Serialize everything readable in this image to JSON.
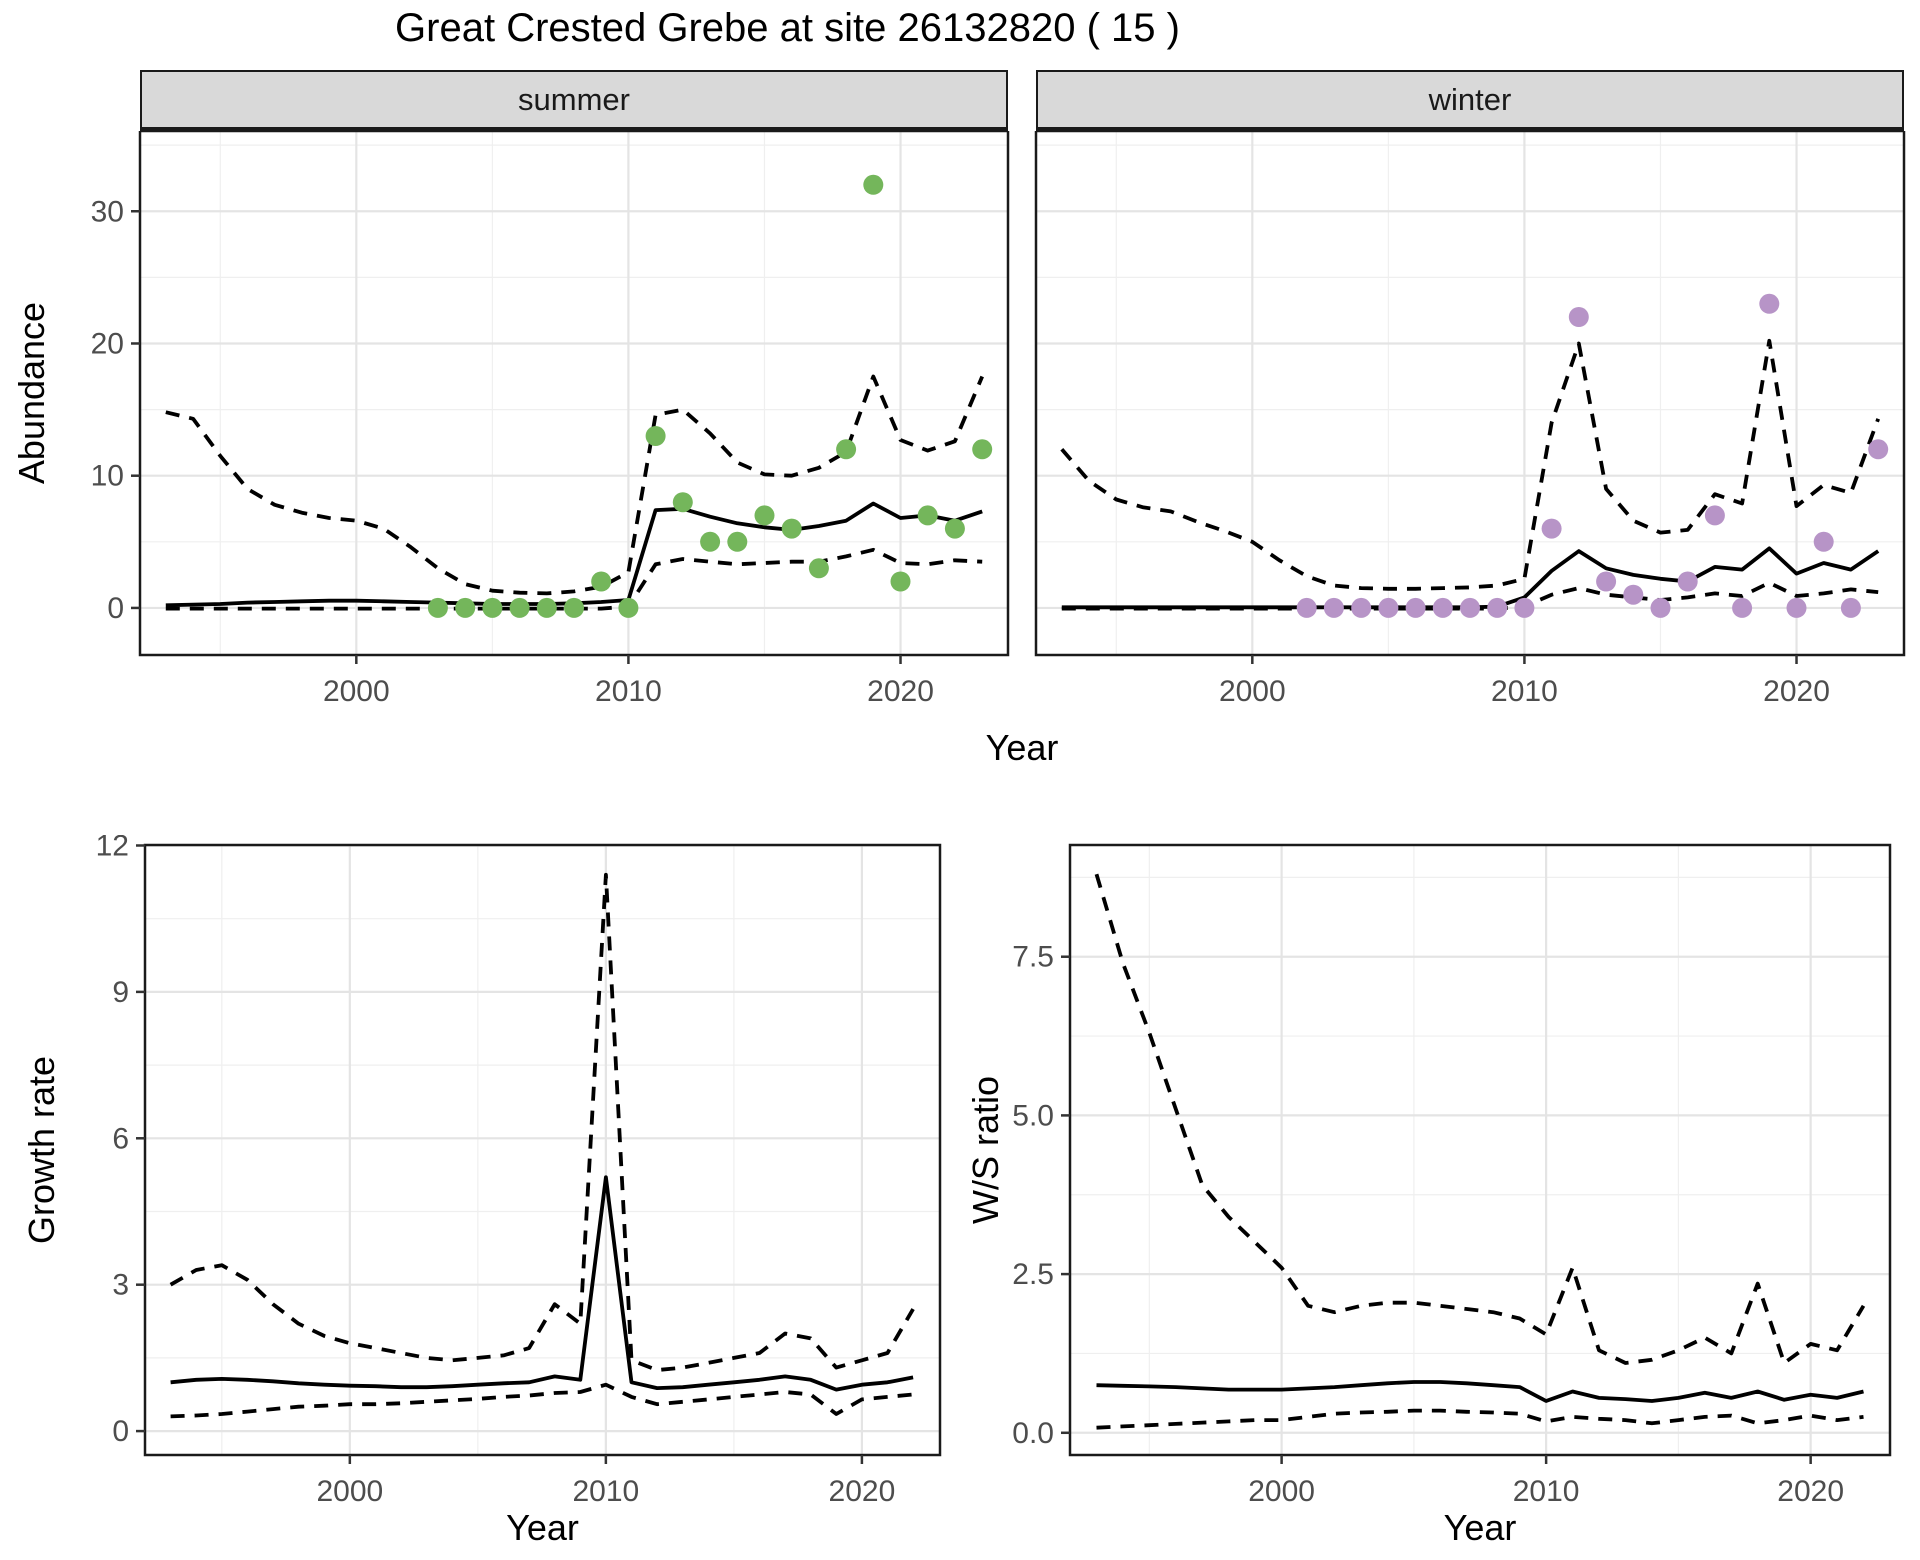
{
  "title": "Great Crested Grebe at site 26132820 ( 15 )",
  "facets": {
    "summer": "summer",
    "winter": "winter"
  },
  "axis_titles": {
    "abundance": "Abundance",
    "year": "Year",
    "growth_rate": "Growth rate",
    "ws_ratio": "W/S ratio"
  },
  "colors": {
    "summer_points": "#74b65b",
    "winter_points": "#b794c7",
    "line": "#000000",
    "grid_major": "#e4e4e4",
    "grid_minor": "#efefef",
    "strip_bg": "#d9d9d9",
    "axis_text": "#4d4d4d",
    "tick_mark": "#333333",
    "panel_border": "#1a1a1a"
  },
  "chart_data": [
    {
      "id": "summer",
      "type": "line",
      "facet": "summer",
      "xlabel": "Year",
      "ylabel": "Abundance",
      "xlim": [
        1992.05,
        2023.95
      ],
      "ylim": [
        -3.56,
        36.07
      ],
      "xticks": [
        2000,
        2010,
        2020
      ],
      "xticklabels": [
        "2000",
        "2010",
        "2020"
      ],
      "xticks_minor": [
        1995,
        2005,
        2015
      ],
      "yticks": [
        0,
        10,
        20,
        30
      ],
      "yticklabels": [
        "0",
        "10",
        "20",
        "30"
      ],
      "yticks_minor": [
        5,
        15,
        25,
        35
      ],
      "series": [
        {
          "name": "fitted",
          "style": "solid",
          "x_start": 1993,
          "values": [
            0.2,
            0.25,
            0.3,
            0.4,
            0.45,
            0.5,
            0.55,
            0.55,
            0.5,
            0.45,
            0.4,
            0.35,
            0.3,
            0.3,
            0.3,
            0.35,
            0.45,
            0.6,
            7.4,
            7.5,
            6.9,
            6.4,
            6.1,
            5.9,
            6.2,
            6.6,
            7.9,
            6.8,
            7.0,
            6.6,
            7.3
          ]
        },
        {
          "name": "upper-ci",
          "style": "dashed",
          "x_start": 1993,
          "values": [
            14.8,
            14.3,
            11.5,
            9.0,
            7.8,
            7.2,
            6.8,
            6.6,
            6.0,
            4.6,
            3.0,
            1.8,
            1.3,
            1.15,
            1.1,
            1.25,
            1.6,
            2.7,
            14.6,
            15.0,
            13.2,
            11.0,
            10.1,
            10.0,
            10.6,
            11.8,
            17.5,
            12.7,
            11.9,
            12.6,
            17.5
          ]
        },
        {
          "name": "lower-ci",
          "style": "dashed",
          "x_start": 1993,
          "values": [
            -0.05,
            -0.05,
            -0.05,
            -0.05,
            -0.05,
            -0.05,
            -0.05,
            -0.05,
            -0.05,
            -0.05,
            -0.05,
            -0.05,
            -0.05,
            -0.05,
            -0.05,
            -0.05,
            -0.05,
            0.1,
            3.3,
            3.7,
            3.5,
            3.3,
            3.4,
            3.5,
            3.5,
            3.9,
            4.4,
            3.4,
            3.3,
            3.6,
            3.5
          ]
        },
        {
          "name": "observed",
          "style": "points",
          "color": "#74b65b",
          "x_start": 2003,
          "values": [
            0,
            0,
            0,
            0,
            0,
            0,
            2,
            0,
            13,
            8,
            5,
            5,
            7,
            6,
            3,
            12,
            32,
            2,
            7,
            6,
            12
          ]
        }
      ]
    },
    {
      "id": "winter",
      "type": "line",
      "facet": "winter",
      "xlabel": "Year",
      "ylabel": "Abundance",
      "xlim": [
        1992.05,
        2023.95
      ],
      "ylim": [
        -3.56,
        36.07
      ],
      "xticks": [
        2000,
        2010,
        2020
      ],
      "xticklabels": [
        "2000",
        "2010",
        "2020"
      ],
      "xticks_minor": [
        1995,
        2005,
        2015
      ],
      "yticks": [
        0,
        10,
        20,
        30
      ],
      "yticklabels": [
        "0",
        "10",
        "20",
        "30"
      ],
      "yticks_minor": [
        5,
        15,
        25,
        35
      ],
      "series": [
        {
          "name": "fitted",
          "style": "solid",
          "x_start": 1993,
          "values": [
            0.05,
            0.05,
            0.05,
            0.05,
            0.05,
            0.05,
            0.05,
            0.05,
            0.05,
            0.05,
            0.05,
            0.05,
            0.05,
            0.05,
            0.05,
            0.05,
            0.1,
            0.8,
            2.8,
            4.3,
            3.0,
            2.5,
            2.2,
            2.0,
            3.1,
            2.9,
            4.5,
            2.6,
            3.4,
            2.9,
            4.3
          ]
        },
        {
          "name": "upper-ci",
          "style": "dashed",
          "x_start": 1993,
          "values": [
            12.0,
            9.6,
            8.2,
            7.6,
            7.3,
            6.5,
            5.8,
            5.0,
            3.6,
            2.4,
            1.7,
            1.5,
            1.45,
            1.45,
            1.5,
            1.55,
            1.7,
            2.2,
            14.0,
            20.0,
            9.0,
            6.6,
            5.7,
            5.9,
            8.6,
            7.9,
            20.2,
            7.7,
            9.3,
            8.7,
            14.3
          ]
        },
        {
          "name": "lower-ci",
          "style": "dashed",
          "x_start": 1993,
          "values": [
            -0.05,
            -0.05,
            -0.05,
            -0.05,
            -0.05,
            -0.05,
            -0.05,
            -0.05,
            -0.05,
            -0.05,
            -0.05,
            -0.05,
            -0.05,
            -0.05,
            -0.05,
            -0.05,
            -0.05,
            0.1,
            1.0,
            1.5,
            1.0,
            0.8,
            0.6,
            0.8,
            1.1,
            0.9,
            1.9,
            0.9,
            1.1,
            1.4,
            1.2
          ]
        },
        {
          "name": "observed",
          "style": "points",
          "color": "#b794c7",
          "x_start": 2002,
          "values": [
            0,
            0,
            0,
            0,
            0,
            0,
            0,
            0,
            0,
            6,
            22,
            2,
            1,
            0,
            2,
            7,
            0,
            23,
            0,
            5,
            0,
            12
          ]
        }
      ]
    },
    {
      "id": "growth",
      "type": "line",
      "xlabel": "Year",
      "ylabel": "Growth rate",
      "xlim": [
        1992.0,
        2023.05
      ],
      "ylim": [
        -0.49,
        12.01
      ],
      "xticks": [
        2000,
        2010,
        2020
      ],
      "xticklabels": [
        "2000",
        "2010",
        "2020"
      ],
      "xticks_minor": [
        1995,
        2005,
        2015
      ],
      "yticks": [
        0,
        3,
        6,
        9,
        12
      ],
      "yticklabels": [
        "0",
        "3",
        "6",
        "9",
        "12"
      ],
      "yticks_minor": [
        1.5,
        4.5,
        7.5,
        10.5
      ],
      "series": [
        {
          "name": "fitted",
          "style": "solid",
          "x_start": 1993,
          "values": [
            1.0,
            1.05,
            1.07,
            1.05,
            1.02,
            0.98,
            0.95,
            0.93,
            0.92,
            0.9,
            0.9,
            0.92,
            0.95,
            0.98,
            1.0,
            1.12,
            1.05,
            5.2,
            1.0,
            0.88,
            0.9,
            0.95,
            1.0,
            1.05,
            1.12,
            1.05,
            0.85,
            0.95,
            1.0,
            1.1
          ]
        },
        {
          "name": "upper-ci",
          "style": "dashed",
          "x_start": 1993,
          "values": [
            3.0,
            3.3,
            3.4,
            3.1,
            2.6,
            2.2,
            1.95,
            1.8,
            1.7,
            1.6,
            1.5,
            1.45,
            1.5,
            1.55,
            1.7,
            2.6,
            2.2,
            11.4,
            1.45,
            1.25,
            1.3,
            1.4,
            1.5,
            1.6,
            2.0,
            1.9,
            1.3,
            1.45,
            1.6,
            2.5
          ]
        },
        {
          "name": "lower-ci",
          "style": "dashed",
          "x_start": 1993,
          "values": [
            0.3,
            0.32,
            0.35,
            0.4,
            0.45,
            0.5,
            0.52,
            0.55,
            0.55,
            0.57,
            0.6,
            0.63,
            0.66,
            0.7,
            0.73,
            0.78,
            0.8,
            0.95,
            0.7,
            0.55,
            0.6,
            0.65,
            0.7,
            0.75,
            0.8,
            0.75,
            0.35,
            0.65,
            0.7,
            0.75
          ]
        }
      ]
    },
    {
      "id": "ws",
      "type": "line",
      "xlabel": "Year",
      "ylabel": "W/S ratio",
      "xlim": [
        1992.0,
        2023.0
      ],
      "ylim": [
        -0.35,
        9.26
      ],
      "xticks": [
        2000,
        2010,
        2020
      ],
      "xticklabels": [
        "2000",
        "2010",
        "2020"
      ],
      "xticks_minor": [
        1995,
        2005,
        2015
      ],
      "yticks": [
        0,
        2.5,
        5,
        7.5
      ],
      "yticklabels": [
        "0.0",
        "2.5",
        "5.0",
        "7.5"
      ],
      "yticks_minor": [
        1.25,
        3.75,
        6.25,
        8.75
      ],
      "series": [
        {
          "name": "fitted",
          "style": "solid",
          "x_start": 1993,
          "values": [
            0.75,
            0.74,
            0.73,
            0.72,
            0.7,
            0.68,
            0.68,
            0.68,
            0.7,
            0.72,
            0.75,
            0.78,
            0.8,
            0.8,
            0.78,
            0.75,
            0.72,
            0.5,
            0.65,
            0.55,
            0.53,
            0.5,
            0.55,
            0.63,
            0.55,
            0.65,
            0.52,
            0.6,
            0.55,
            0.65
          ]
        },
        {
          "name": "upper-ci",
          "style": "dashed",
          "x_start": 1993,
          "values": [
            8.8,
            7.4,
            6.3,
            5.1,
            3.9,
            3.4,
            3.0,
            2.6,
            2.0,
            1.9,
            2.0,
            2.05,
            2.05,
            2.0,
            1.95,
            1.9,
            1.8,
            1.55,
            2.6,
            1.3,
            1.1,
            1.15,
            1.3,
            1.5,
            1.25,
            2.35,
            1.1,
            1.4,
            1.3,
            2.0
          ]
        },
        {
          "name": "lower-ci",
          "style": "dashed",
          "x_start": 1993,
          "values": [
            0.08,
            0.1,
            0.12,
            0.14,
            0.16,
            0.18,
            0.2,
            0.2,
            0.25,
            0.3,
            0.32,
            0.33,
            0.35,
            0.35,
            0.33,
            0.32,
            0.3,
            0.18,
            0.25,
            0.22,
            0.2,
            0.15,
            0.2,
            0.25,
            0.27,
            0.15,
            0.2,
            0.27,
            0.2,
            0.25
          ]
        }
      ]
    }
  ]
}
